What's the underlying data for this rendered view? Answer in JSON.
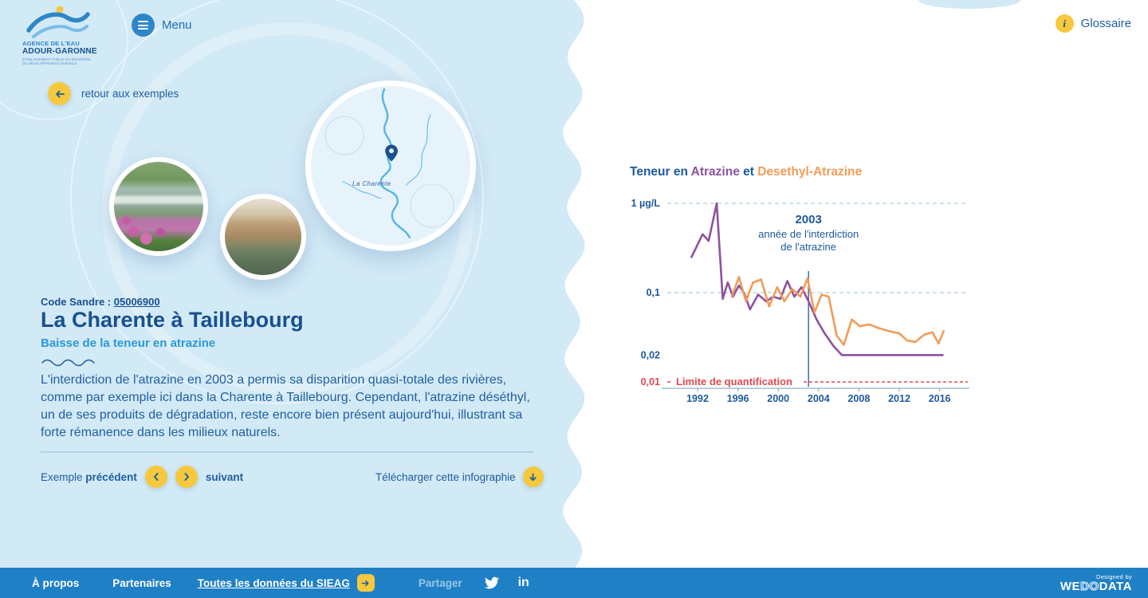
{
  "header": {
    "logo": {
      "line1": "AGENCE DE L'EAU",
      "line2": "ADOUR-GARONNE",
      "line3": "ÉTABLISSEMENT PUBLIC DU MINISTÈRE",
      "line4": "DU DÉVELOPPEMENT DURABLE"
    },
    "menu_label": "Menu",
    "glossary_label": "Glossaire"
  },
  "left": {
    "back_label": "retour aux exemples",
    "map_label": "La Charente",
    "code_label": "Code Sandre :",
    "code_value": "05006900",
    "title": "La Charente à Taillebourg",
    "subtitle": "Baisse de la teneur en atrazine",
    "description": "L'interdiction de l'atrazine en 2003 a permis sa disparition quasi-totale des rivières, comme par exemple ici dans la Charente à Taillebourg. Cependant, l'atrazine déséthyl, un de ses produits de dégradation, reste encore bien présent aujourd'hui, illustrant sa forte rémanence dans les milieux naturels.",
    "pager": {
      "example_label": "Exemple",
      "prev_label": "précédent",
      "next_label": "suivant",
      "download_label": "Télécharger cette infographie"
    }
  },
  "footer": {
    "about": "À propos",
    "partners": "Partenaires",
    "data_link": "Toutes les données du SIEAG",
    "share_label": "Partager",
    "designed_by": "Designed by",
    "brand_parts": [
      "WE",
      "DO",
      "DATA"
    ]
  },
  "chart_data": {
    "type": "line",
    "title_segments": [
      {
        "text": "Teneur en ",
        "color": "#1c5a9b"
      },
      {
        "text": "Atrazine",
        "color": "#8d52a2"
      },
      {
        "text": " et ",
        "color": "#1c5a9b"
      },
      {
        "text": "Desethyl-Atrazine",
        "color": "#f19c58"
      }
    ],
    "y_scale": "log",
    "y_unit": "µg/L",
    "y_ticks": [
      {
        "label": "1 µg/L",
        "value": 1,
        "grid": true,
        "color": "#1c5a9b"
      },
      {
        "label": "0,1",
        "value": 0.1,
        "grid": true,
        "color": "#1c5a9b"
      },
      {
        "label": "0,02",
        "value": 0.02,
        "grid": false,
        "color": "#1c5a9b"
      },
      {
        "label": "0,01",
        "value": 0.01,
        "grid": false,
        "color": "#e2484f"
      }
    ],
    "x_ticks": [
      1992,
      1996,
      2000,
      2004,
      2008,
      2012,
      2016
    ],
    "x_range": [
      1991,
      2017
    ],
    "annotation": {
      "year": 2003,
      "title": "2003",
      "line1": "année de l'interdiction",
      "line2": "de l'atrazine"
    },
    "limit": {
      "label": "Limite de quantification",
      "value": 0.01,
      "color": "#e2484f"
    },
    "series": [
      {
        "name": "Atrazine",
        "color": "#8d52a2",
        "points": [
          [
            1991.4,
            0.25
          ],
          [
            1992.5,
            0.45
          ],
          [
            1993.1,
            0.38
          ],
          [
            1993.9,
            1.0
          ],
          [
            1994.5,
            0.085
          ],
          [
            1995.0,
            0.13
          ],
          [
            1995.5,
            0.09
          ],
          [
            1996.1,
            0.12
          ],
          [
            1996.6,
            0.1
          ],
          [
            1997.2,
            0.065
          ],
          [
            1998.0,
            0.095
          ],
          [
            1998.8,
            0.08
          ],
          [
            1999.5,
            0.09
          ],
          [
            2000.2,
            0.085
          ],
          [
            2000.9,
            0.135
          ],
          [
            2001.6,
            0.09
          ],
          [
            2002.3,
            0.115
          ],
          [
            2003.0,
            0.08
          ],
          [
            2003.8,
            0.05
          ],
          [
            2004.6,
            0.035
          ],
          [
            2005.5,
            0.025
          ],
          [
            2006.3,
            0.02
          ],
          [
            2016.3,
            0.02
          ]
        ]
      },
      {
        "name": "Desethyl-Atrazine",
        "color": "#f19c58",
        "points": [
          [
            1995.4,
            0.09
          ],
          [
            1996.1,
            0.15
          ],
          [
            1996.8,
            0.08
          ],
          [
            1997.5,
            0.13
          ],
          [
            1998.3,
            0.14
          ],
          [
            1999.1,
            0.07
          ],
          [
            1999.9,
            0.115
          ],
          [
            2000.6,
            0.08
          ],
          [
            2001.4,
            0.11
          ],
          [
            2002.2,
            0.09
          ],
          [
            2002.9,
            0.145
          ],
          [
            2003.6,
            0.06
          ],
          [
            2004.3,
            0.095
          ],
          [
            2005.0,
            0.09
          ],
          [
            2005.8,
            0.033
          ],
          [
            2006.5,
            0.026
          ],
          [
            2007.3,
            0.05
          ],
          [
            2008.1,
            0.042
          ],
          [
            2009.0,
            0.044
          ],
          [
            2010.0,
            0.04
          ],
          [
            2011.0,
            0.037
          ],
          [
            2012.0,
            0.035
          ],
          [
            2012.8,
            0.029
          ],
          [
            2013.6,
            0.028
          ],
          [
            2014.5,
            0.034
          ],
          [
            2015.3,
            0.036
          ],
          [
            2015.9,
            0.027
          ],
          [
            2016.4,
            0.037
          ]
        ]
      }
    ]
  }
}
